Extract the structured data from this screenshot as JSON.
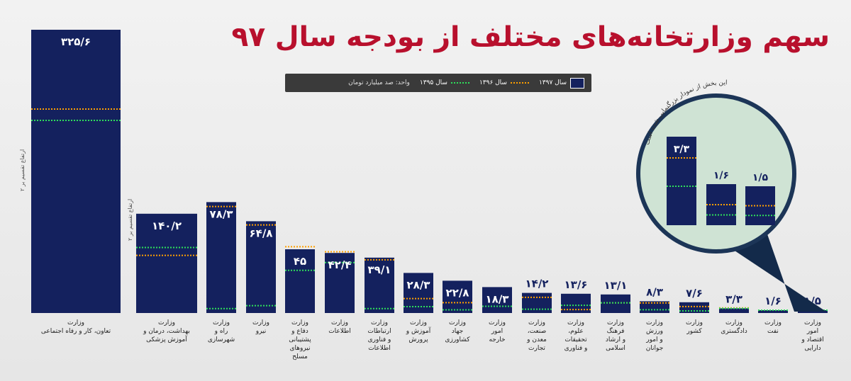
{
  "title": "سهم وزارتخانه‌های مختلف از بودجه سال ۹۷",
  "legend": {
    "series_1397": "سال ۱۳۹۷",
    "series_1396": "سال ۱۳۹۶",
    "series_1395": "سال ۱۳۹۵",
    "unit": "واحد: صد میلیارد تومان"
  },
  "colors": {
    "bar": "#14215e",
    "y1396": "#ffa000",
    "y1395": "#2ee05a",
    "title": "#b8102d",
    "magnifier": "#cfe3d4"
  },
  "scale_notes": {
    "n1": "ارتفاع تقسیم بر ۲",
    "n2": "ارتفاع تقسیم بر ۲"
  },
  "zoom_caption": "این بخش از نمودار بزرگنمایی شده است",
  "chart_data": {
    "type": "bar",
    "series": [
      {
        "name": "سال ۱۳۹۷",
        "values": [
          325.6,
          140.2,
          78.3,
          64.8,
          45,
          42.4,
          39.1,
          28.3,
          22.8,
          18.3,
          14.2,
          13.6,
          13.1,
          8.3,
          7.6,
          3.3,
          1.6,
          1.5
        ]
      }
    ],
    "labels": [
      "۳۲۵/۶",
      "۱۴۰/۲",
      "۷۸/۳",
      "۶۴/۸",
      "۴۵",
      "۴۲/۴",
      "۳۹/۱",
      "۲۸/۳",
      "۲۲/۸",
      "۱۸/۳",
      "۱۴/۲",
      "۱۳/۶",
      "۱۳/۱",
      "۸/۳",
      "۷/۶",
      "۳/۳",
      "۱/۶",
      "۱/۵"
    ],
    "categories": [
      [
        "وزارت",
        "تعاون، کار و رفاه اجتماعی"
      ],
      [
        "وزارت",
        "بهداشت، درمان و",
        "آموزش پزشکی"
      ],
      [
        "وزارت",
        "راه و",
        "شهرسازی"
      ],
      [
        "وزارت",
        "نیرو"
      ],
      [
        "وزارت",
        "دفاع و",
        "پشتیبانی",
        "نیروهای",
        "مسلح"
      ],
      [
        "وزارت",
        "اطلاعات"
      ],
      [
        "وزارت",
        "ارتباطات",
        "و فناوری",
        "اطلاعات"
      ],
      [
        "وزارت",
        "آموزش و",
        "پرورش"
      ],
      [
        "وزارت",
        "جهاد",
        "کشاورزی"
      ],
      [
        "وزارت",
        "امور",
        "خارجه"
      ],
      [
        "وزارت",
        "صنعت،",
        "معدن و",
        "تجارت"
      ],
      [
        "وزارت",
        "علوم،",
        "تحقیقات",
        "و فناوری"
      ],
      [
        "وزارت",
        "فرهنگ",
        "و ارشاد",
        "اسلامی"
      ],
      [
        "وزارت",
        "ورزش",
        "و امور",
        "جوانان"
      ],
      [
        "وزارت",
        "کشور"
      ],
      [
        "وزارت",
        "دادگستری"
      ],
      [
        "وزارت",
        "نفت"
      ],
      [
        "وزارت",
        "امور",
        "اقتصاد و",
        "دارایی"
      ]
    ],
    "zoom": {
      "labels": [
        "۳/۳",
        "۱/۶",
        "۱/۵"
      ],
      "values": [
        3.3,
        1.6,
        1.5
      ]
    }
  }
}
